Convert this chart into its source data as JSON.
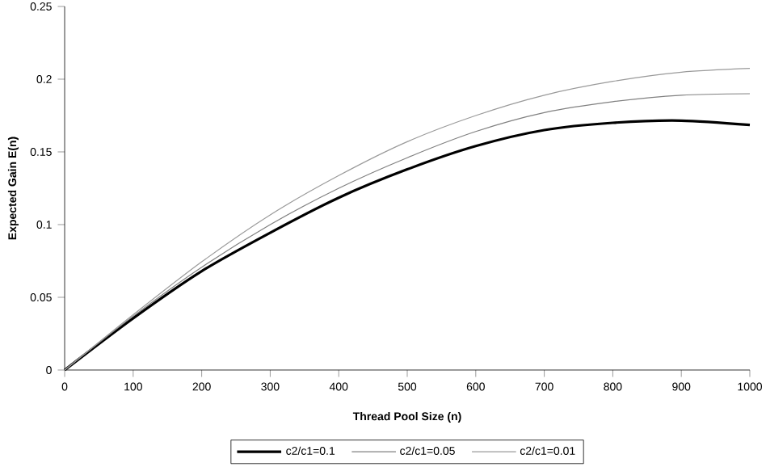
{
  "chart_data": {
    "type": "line",
    "xlabel": "Thread Pool Size (n)",
    "ylabel": "Expected Gain E(n)",
    "x": [
      0,
      100,
      200,
      300,
      400,
      500,
      600,
      700,
      800,
      900,
      1000
    ],
    "series": [
      {
        "name": "c2/c1=0.1",
        "color": "#000000",
        "values": [
          0,
          0.0356,
          0.068,
          0.0944,
          0.1185,
          0.138,
          0.154,
          0.165,
          0.17,
          0.1715,
          0.1685
        ]
      },
      {
        "name": "c2/c1=0.05",
        "color": "#808080",
        "values": [
          0,
          0.037,
          0.0707,
          0.1,
          0.125,
          0.146,
          0.164,
          0.177,
          0.1845,
          0.189,
          0.19
        ]
      },
      {
        "name": "c2/c1=0.01",
        "color": "#9a9a9a",
        "values": [
          0,
          0.038,
          0.0744,
          0.1067,
          0.1337,
          0.157,
          0.175,
          0.189,
          0.1985,
          0.2048,
          0.2074
        ]
      }
    ],
    "xlim": [
      0,
      1000
    ],
    "xticks": [
      0,
      100,
      200,
      300,
      400,
      500,
      600,
      700,
      800,
      900,
      1000
    ],
    "ylim": [
      0,
      0.25
    ],
    "yticks": [
      0,
      0.05,
      0.1,
      0.15,
      0.2,
      0.25
    ],
    "grid": false,
    "legend": "bottom",
    "marker": "none",
    "line_style": "solid"
  }
}
